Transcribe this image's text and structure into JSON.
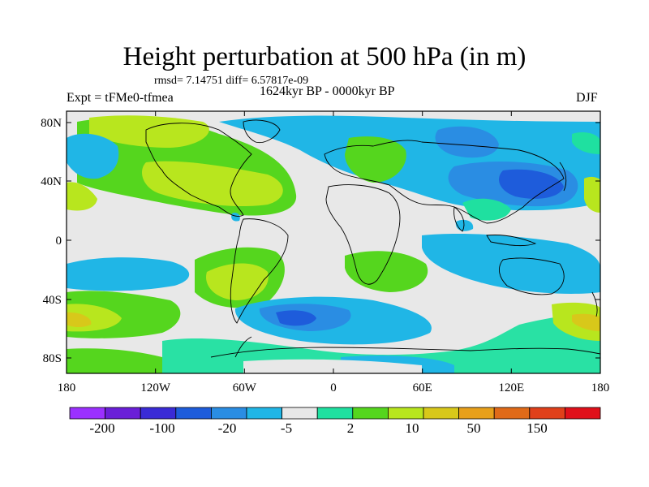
{
  "title": "Height perturbation at 500 hPa (in m)",
  "stats_line": "rmsd= 7.14751 diff= 6.57817e-09",
  "period": "1624kyr BP - 0000kyr BP",
  "experiment": "Expt = tFMe0-tfmea",
  "season": "DJF",
  "axes": {
    "lat_ticks": [
      "80N",
      "40N",
      "0",
      "40S",
      "80S"
    ],
    "lon_ticks": [
      "180",
      "120W",
      "60W",
      "0",
      "60E",
      "120E",
      "180"
    ]
  },
  "colorbar": {
    "labels": [
      "-200",
      "-100",
      "-20",
      "-5",
      "2",
      "10",
      "50",
      "150"
    ],
    "colors": [
      "#9b30ff",
      "#6a1fd8",
      "#3a2bd6",
      "#1e5cdb",
      "#2a8de3",
      "#20b6e6",
      "#e8e8e8",
      "#1fe0a0",
      "#55d61e",
      "#b8e61e",
      "#d8c81a",
      "#e8a01a",
      "#e06a18",
      "#e0401a",
      "#e0101a"
    ]
  },
  "palette": {
    "background": "#ffffff",
    "neutral": "#e8e8e8",
    "coastline": "#000000"
  }
}
